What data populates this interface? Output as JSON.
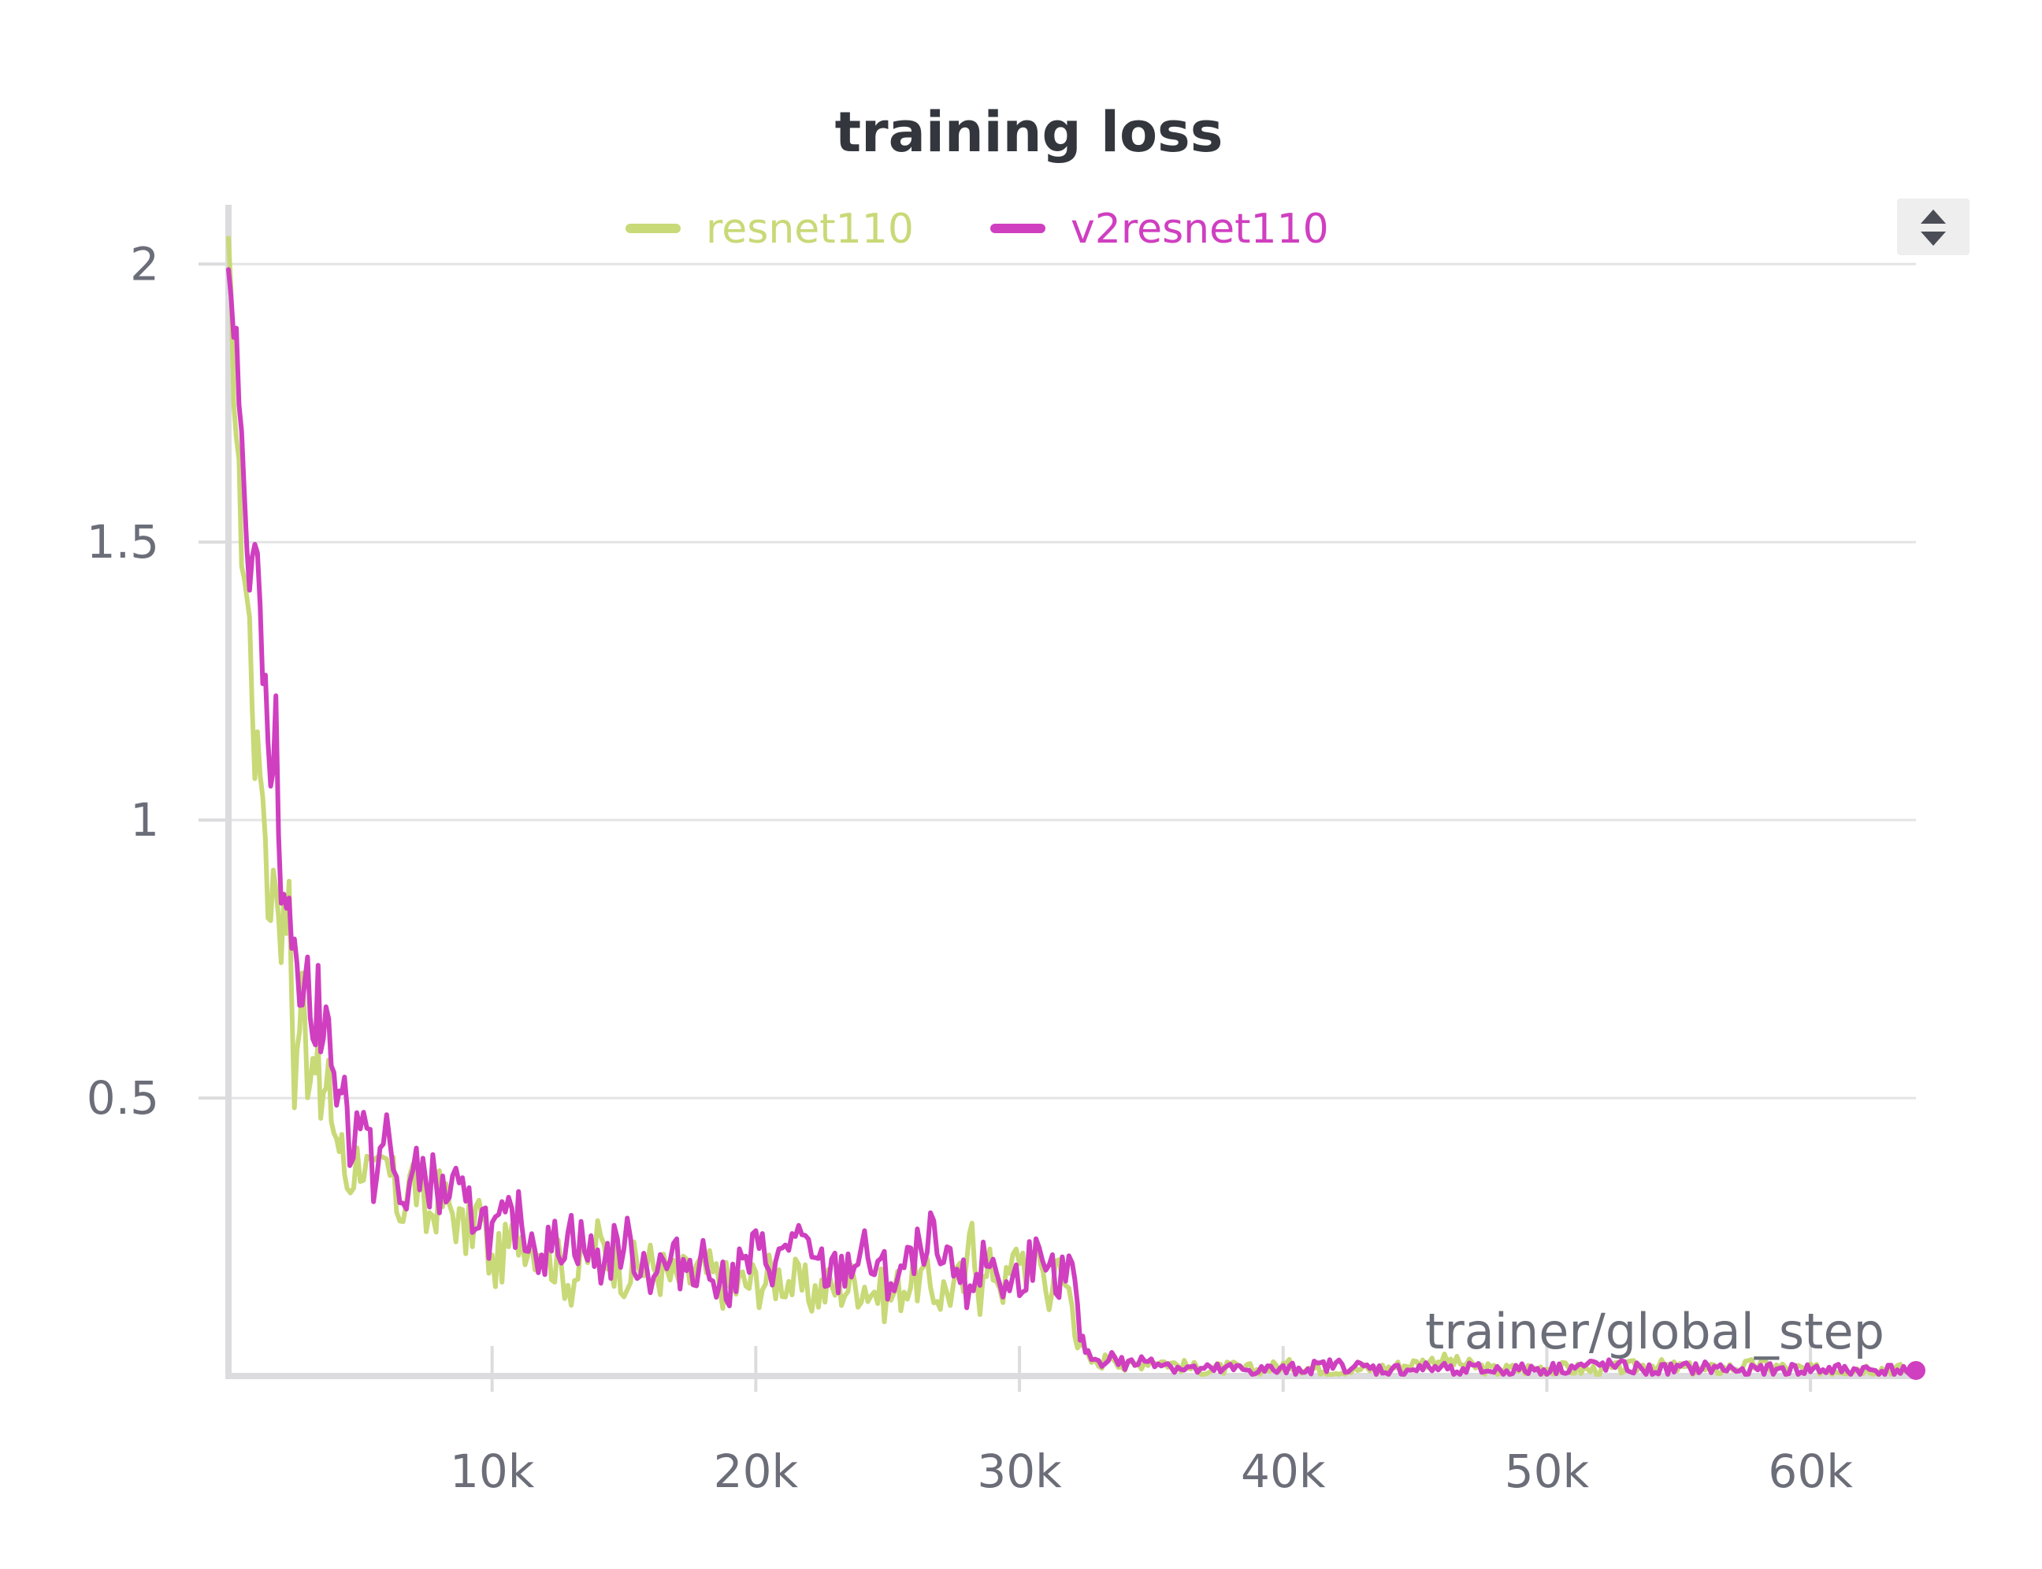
{
  "controls": {
    "sort_icon": "sort-up-down-icon"
  },
  "chart_data": {
    "type": "line",
    "title": "training loss",
    "xlabel": "trainer/global_step",
    "ylabel": "",
    "xlim": [
      0,
      64000
    ],
    "ylim": [
      0,
      2.05
    ],
    "x_ticks": [
      {
        "value": 10000,
        "label": "10k"
      },
      {
        "value": 20000,
        "label": "20k"
      },
      {
        "value": 30000,
        "label": "30k"
      },
      {
        "value": 40000,
        "label": "40k"
      },
      {
        "value": 50000,
        "label": "50k"
      },
      {
        "value": 60000,
        "label": "60k"
      }
    ],
    "y_ticks": [
      {
        "value": 0.5,
        "label": "0.5"
      },
      {
        "value": 1,
        "label": "1"
      },
      {
        "value": 1.5,
        "label": "1.5"
      },
      {
        "value": 2,
        "label": "2"
      }
    ],
    "grid": true,
    "legend_position": "top-center",
    "series": [
      {
        "name": "resnet110",
        "color": "#c8d977",
        "x": [
          0,
          300,
          500,
          800,
          1000,
          1300,
          1500,
          1800,
          2000,
          2300,
          2500,
          2800,
          3000,
          3300,
          3500,
          3800,
          4000,
          4300,
          4500,
          5000,
          5500,
          6000,
          6500,
          7000,
          7500,
          8000,
          8500,
          9000,
          9500,
          10000,
          11000,
          12000,
          13000,
          14000,
          15000,
          16000,
          17000,
          18000,
          19000,
          20000,
          21000,
          22000,
          23000,
          24000,
          25000,
          26000,
          27000,
          28000,
          28200,
          28500,
          29000,
          29500,
          30000,
          30500,
          30700,
          31000,
          31500,
          32000,
          32300,
          32600,
          33000,
          33500,
          34000,
          35000,
          36000,
          37000,
          38000,
          39000,
          40000,
          42000,
          44000,
          46000,
          48000,
          50000,
          52000,
          54000,
          56000,
          58000,
          60000,
          62000,
          64000
        ],
        "y": [
          2.0,
          1.7,
          1.5,
          1.35,
          1.12,
          1.08,
          0.85,
          0.9,
          0.8,
          0.85,
          0.52,
          0.7,
          0.55,
          0.6,
          0.48,
          0.52,
          0.45,
          0.4,
          0.35,
          0.4,
          0.34,
          0.38,
          0.3,
          0.36,
          0.28,
          0.32,
          0.3,
          0.25,
          0.3,
          0.19,
          0.26,
          0.23,
          0.17,
          0.24,
          0.19,
          0.2,
          0.17,
          0.19,
          0.16,
          0.17,
          0.18,
          0.15,
          0.16,
          0.17,
          0.14,
          0.18,
          0.15,
          0.17,
          0.29,
          0.15,
          0.2,
          0.16,
          0.23,
          0.18,
          0.26,
          0.15,
          0.19,
          0.14,
          0.06,
          0.03,
          0.02,
          0.04,
          0.015,
          0.03,
          0.02,
          0.01,
          0.015,
          0.01,
          0.02,
          0.01,
          0.015,
          0.03,
          0.01,
          0.015,
          0.01,
          0.02,
          0.01,
          0.02,
          0.01,
          0.015,
          0.01
        ]
      },
      {
        "name": "v2resnet110",
        "color": "#cf3fc0",
        "x": [
          0,
          200,
          400,
          600,
          800,
          1000,
          1200,
          1400,
          1600,
          1800,
          2000,
          2200,
          2400,
          2600,
          2800,
          3000,
          3200,
          3400,
          3600,
          3800,
          4000,
          4300,
          4600,
          5000,
          5500,
          6000,
          6500,
          7000,
          7500,
          8000,
          8500,
          9000,
          9500,
          10000,
          11000,
          12000,
          13000,
          14000,
          15000,
          16000,
          17000,
          18000,
          19000,
          20000,
          21000,
          21500,
          22000,
          23000,
          24000,
          25000,
          26000,
          26500,
          27000,
          28000,
          29000,
          29500,
          30000,
          30500,
          31000,
          31500,
          32000,
          32300,
          32600,
          33000,
          33500,
          34000,
          35000,
          36000,
          37000,
          38000,
          40000,
          42000,
          44000,
          46000,
          48000,
          50000,
          52000,
          54000,
          56000,
          58000,
          60000,
          62000,
          64000
        ],
        "y": [
          2.05,
          1.9,
          1.8,
          1.6,
          1.45,
          1.55,
          1.35,
          1.25,
          1.05,
          1.22,
          0.82,
          0.9,
          0.72,
          0.8,
          0.65,
          0.78,
          0.58,
          0.7,
          0.55,
          0.68,
          0.5,
          0.55,
          0.42,
          0.47,
          0.36,
          0.43,
          0.31,
          0.35,
          0.37,
          0.32,
          0.34,
          0.29,
          0.3,
          0.25,
          0.28,
          0.22,
          0.26,
          0.2,
          0.24,
          0.19,
          0.2,
          0.21,
          0.17,
          0.22,
          0.2,
          0.27,
          0.2,
          0.18,
          0.22,
          0.17,
          0.2,
          0.27,
          0.19,
          0.17,
          0.21,
          0.15,
          0.18,
          0.22,
          0.16,
          0.19,
          0.18,
          0.07,
          0.04,
          0.025,
          0.035,
          0.02,
          0.03,
          0.015,
          0.01,
          0.012,
          0.01,
          0.02,
          0.01,
          0.015,
          0.01,
          0.012,
          0.02,
          0.01,
          0.015,
          0.01,
          0.012,
          0.01,
          0.01
        ]
      }
    ]
  }
}
